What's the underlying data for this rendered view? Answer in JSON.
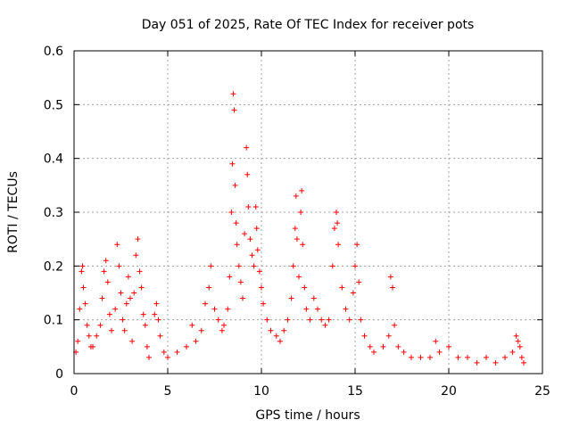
{
  "chart_data": {
    "type": "scatter",
    "title": "Day 051 of 2025, Rate Of TEC Index for receiver pots",
    "xlabel": "GPS time / hours",
    "ylabel": "ROTI / TECUs",
    "xlim": [
      0,
      25
    ],
    "ylim": [
      0,
      0.6
    ],
    "x_ticks": [
      0,
      5,
      10,
      15,
      20,
      25
    ],
    "x_tick_labels": [
      "0",
      "5",
      "10",
      "15",
      "20",
      "25"
    ],
    "y_ticks": [
      0,
      0.1,
      0.2,
      0.3,
      0.4,
      0.5,
      0.6
    ],
    "y_tick_labels": [
      "0",
      "0.1",
      "0.2",
      "0.3",
      "0.4",
      "0.5",
      "0.6"
    ],
    "grid": true,
    "marker": "plus",
    "color": "#ff0000",
    "points": [
      [
        0.1,
        0.04
      ],
      [
        0.2,
        0.06
      ],
      [
        0.3,
        0.12
      ],
      [
        0.4,
        0.19
      ],
      [
        0.45,
        0.2
      ],
      [
        0.5,
        0.16
      ],
      [
        0.6,
        0.13
      ],
      [
        0.7,
        0.09
      ],
      [
        0.8,
        0.07
      ],
      [
        0.9,
        0.05
      ],
      [
        1.0,
        0.05
      ],
      [
        1.2,
        0.07
      ],
      [
        1.4,
        0.09
      ],
      [
        1.5,
        0.14
      ],
      [
        1.6,
        0.19
      ],
      [
        1.7,
        0.21
      ],
      [
        1.8,
        0.17
      ],
      [
        1.9,
        0.11
      ],
      [
        2.0,
        0.08
      ],
      [
        2.2,
        0.12
      ],
      [
        2.3,
        0.24
      ],
      [
        2.4,
        0.2
      ],
      [
        2.5,
        0.15
      ],
      [
        2.6,
        0.1
      ],
      [
        2.7,
        0.08
      ],
      [
        2.8,
        0.13
      ],
      [
        2.9,
        0.18
      ],
      [
        3.0,
        0.14
      ],
      [
        3.1,
        0.06
      ],
      [
        3.2,
        0.15
      ],
      [
        3.3,
        0.22
      ],
      [
        3.4,
        0.25
      ],
      [
        3.5,
        0.19
      ],
      [
        3.6,
        0.16
      ],
      [
        3.7,
        0.11
      ],
      [
        3.8,
        0.09
      ],
      [
        3.9,
        0.05
      ],
      [
        4.0,
        0.03
      ],
      [
        4.3,
        0.11
      ],
      [
        4.4,
        0.13
      ],
      [
        4.5,
        0.1
      ],
      [
        4.6,
        0.07
      ],
      [
        4.8,
        0.04
      ],
      [
        5.0,
        0.03
      ],
      [
        5.5,
        0.04
      ],
      [
        6.0,
        0.05
      ],
      [
        6.3,
        0.09
      ],
      [
        6.5,
        0.06
      ],
      [
        6.8,
        0.08
      ],
      [
        7.0,
        0.13
      ],
      [
        7.2,
        0.16
      ],
      [
        7.3,
        0.2
      ],
      [
        7.5,
        0.12
      ],
      [
        7.7,
        0.1
      ],
      [
        7.9,
        0.08
      ],
      [
        8.0,
        0.09
      ],
      [
        8.2,
        0.12
      ],
      [
        8.3,
        0.18
      ],
      [
        8.4,
        0.3
      ],
      [
        8.45,
        0.39
      ],
      [
        8.5,
        0.52
      ],
      [
        8.55,
        0.49
      ],
      [
        8.6,
        0.35
      ],
      [
        8.65,
        0.28
      ],
      [
        8.7,
        0.24
      ],
      [
        8.8,
        0.2
      ],
      [
        8.9,
        0.17
      ],
      [
        9.0,
        0.14
      ],
      [
        9.1,
        0.26
      ],
      [
        9.2,
        0.42
      ],
      [
        9.25,
        0.37
      ],
      [
        9.3,
        0.31
      ],
      [
        9.4,
        0.25
      ],
      [
        9.5,
        0.22
      ],
      [
        9.6,
        0.2
      ],
      [
        9.7,
        0.31
      ],
      [
        9.75,
        0.27
      ],
      [
        9.8,
        0.23
      ],
      [
        9.9,
        0.19
      ],
      [
        10.0,
        0.16
      ],
      [
        10.1,
        0.13
      ],
      [
        10.3,
        0.1
      ],
      [
        10.5,
        0.08
      ],
      [
        10.8,
        0.07
      ],
      [
        11.0,
        0.06
      ],
      [
        11.2,
        0.08
      ],
      [
        11.4,
        0.1
      ],
      [
        11.6,
        0.14
      ],
      [
        11.7,
        0.2
      ],
      [
        11.8,
        0.27
      ],
      [
        11.85,
        0.33
      ],
      [
        11.9,
        0.25
      ],
      [
        12.0,
        0.18
      ],
      [
        12.1,
        0.3
      ],
      [
        12.15,
        0.34
      ],
      [
        12.2,
        0.24
      ],
      [
        12.3,
        0.16
      ],
      [
        12.4,
        0.12
      ],
      [
        12.6,
        0.1
      ],
      [
        12.8,
        0.14
      ],
      [
        13.0,
        0.12
      ],
      [
        13.2,
        0.1
      ],
      [
        13.4,
        0.09
      ],
      [
        13.6,
        0.1
      ],
      [
        13.8,
        0.2
      ],
      [
        13.9,
        0.27
      ],
      [
        14.0,
        0.3
      ],
      [
        14.05,
        0.28
      ],
      [
        14.1,
        0.24
      ],
      [
        14.3,
        0.16
      ],
      [
        14.5,
        0.12
      ],
      [
        14.7,
        0.1
      ],
      [
        14.9,
        0.15
      ],
      [
        15.0,
        0.2
      ],
      [
        15.1,
        0.24
      ],
      [
        15.2,
        0.17
      ],
      [
        15.3,
        0.1
      ],
      [
        15.5,
        0.07
      ],
      [
        15.8,
        0.05
      ],
      [
        16.0,
        0.04
      ],
      [
        16.5,
        0.05
      ],
      [
        16.8,
        0.07
      ],
      [
        16.9,
        0.18
      ],
      [
        17.0,
        0.16
      ],
      [
        17.1,
        0.09
      ],
      [
        17.3,
        0.05
      ],
      [
        17.6,
        0.04
      ],
      [
        18.0,
        0.03
      ],
      [
        18.5,
        0.03
      ],
      [
        19.0,
        0.03
      ],
      [
        19.3,
        0.06
      ],
      [
        19.5,
        0.04
      ],
      [
        20.0,
        0.05
      ],
      [
        20.5,
        0.03
      ],
      [
        21.0,
        0.03
      ],
      [
        21.5,
        0.02
      ],
      [
        22.0,
        0.03
      ],
      [
        22.5,
        0.02
      ],
      [
        23.0,
        0.03
      ],
      [
        23.4,
        0.04
      ],
      [
        23.6,
        0.07
      ],
      [
        23.7,
        0.06
      ],
      [
        23.8,
        0.05
      ],
      [
        23.9,
        0.03
      ],
      [
        24.0,
        0.02
      ]
    ]
  }
}
